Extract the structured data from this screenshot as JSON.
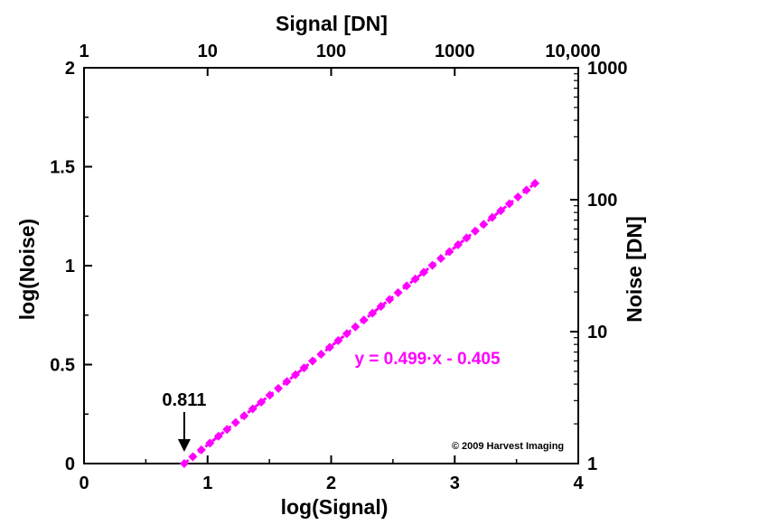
{
  "chart_data": {
    "type": "scatter",
    "xlabel": "log(Signal)",
    "ylabel": "log(Noise)",
    "x2label": "Signal [DN]",
    "y2label": "Noise [DN]",
    "xlim": [
      0,
      4
    ],
    "ylim": [
      0,
      2
    ],
    "x_ticks": [
      "0",
      "1",
      "2",
      "3",
      "4"
    ],
    "y_ticks": [
      "0",
      "0.5",
      "1",
      "1.5",
      "2"
    ],
    "x2_ticks": [
      "1",
      "10",
      "100",
      "1000",
      "10,000"
    ],
    "y2_ticks": [
      "1",
      "10",
      "100",
      "1000"
    ],
    "grid": false,
    "color": "#ff00ff",
    "marker": "diamond",
    "line_style": "dashed",
    "fit": {
      "slope": 0.499,
      "intercept": -0.405,
      "label": "y = 0.499·x - 0.405"
    },
    "x_range": [
      0.811,
      3.65
    ],
    "point_count": 42,
    "annotation": {
      "text": "0.811",
      "x": 0.811,
      "arrow": "down"
    },
    "credit": "© 2009 Harvest Imaging"
  }
}
